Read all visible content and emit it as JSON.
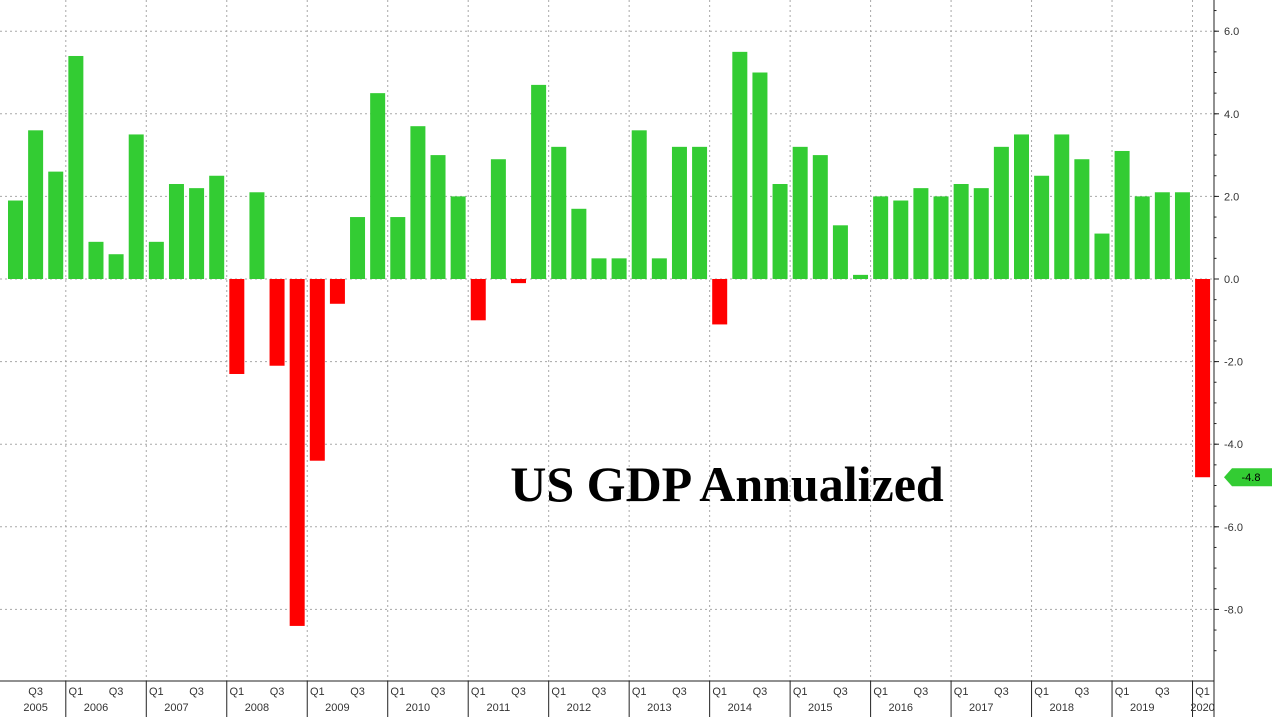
{
  "chart_data": {
    "type": "bar",
    "title": "US GDP Annualized",
    "xlabel": "",
    "ylabel": "",
    "ylim": [
      -9.2,
      6.8
    ],
    "grid": true,
    "yticks": [
      6.0,
      4.0,
      2.0,
      0.0,
      -2.0,
      -4.0,
      -6.0,
      -8.0
    ],
    "ytick_labels": [
      "6.0",
      "4.0",
      "2.0",
      "0.0",
      "-2.0",
      "-4.0",
      "-6.0",
      "-8.0"
    ],
    "first_quarter": {
      "year": 2005,
      "quarter": 2
    },
    "values": [
      1.9,
      3.6,
      2.6,
      5.4,
      0.9,
      0.6,
      3.5,
      0.9,
      2.3,
      2.2,
      2.5,
      -2.3,
      2.1,
      -2.1,
      -8.4,
      -4.4,
      -0.6,
      1.5,
      4.5,
      1.5,
      3.7,
      3.0,
      2.0,
      -1.0,
      2.9,
      -0.1,
      4.7,
      3.2,
      1.7,
      0.5,
      0.5,
      3.6,
      0.5,
      3.2,
      3.2,
      -1.1,
      5.5,
      5.0,
      2.3,
      3.2,
      3.0,
      1.3,
      0.1,
      2.0,
      1.9,
      2.2,
      2.0,
      2.3,
      2.2,
      3.2,
      3.5,
      2.5,
      3.5,
      2.9,
      1.1,
      3.1,
      2.0,
      2.1,
      2.1,
      -4.8
    ],
    "x_quarter_labels": [
      {
        "label": "Q3",
        "index": 1
      },
      {
        "label": "Q1",
        "index": 3
      },
      {
        "label": "Q3",
        "index": 5
      },
      {
        "label": "Q1",
        "index": 7
      },
      {
        "label": "Q3",
        "index": 9
      },
      {
        "label": "Q1",
        "index": 11
      },
      {
        "label": "Q3",
        "index": 13
      },
      {
        "label": "Q1",
        "index": 15
      },
      {
        "label": "Q3",
        "index": 17
      },
      {
        "label": "Q1",
        "index": 19
      },
      {
        "label": "Q3",
        "index": 21
      },
      {
        "label": "Q1",
        "index": 23
      },
      {
        "label": "Q3",
        "index": 25
      },
      {
        "label": "Q1",
        "index": 27
      },
      {
        "label": "Q3",
        "index": 29
      },
      {
        "label": "Q1",
        "index": 31
      },
      {
        "label": "Q3",
        "index": 33
      },
      {
        "label": "Q1",
        "index": 35
      },
      {
        "label": "Q3",
        "index": 37
      },
      {
        "label": "Q1",
        "index": 39
      },
      {
        "label": "Q3",
        "index": 41
      },
      {
        "label": "Q1",
        "index": 43
      },
      {
        "label": "Q3",
        "index": 45
      },
      {
        "label": "Q1",
        "index": 47
      },
      {
        "label": "Q3",
        "index": 49
      },
      {
        "label": "Q1",
        "index": 51
      },
      {
        "label": "Q3",
        "index": 53
      },
      {
        "label": "Q1",
        "index": 55
      },
      {
        "label": "Q3",
        "index": 57
      },
      {
        "label": "Q1",
        "index": 59
      }
    ],
    "x_year_labels": [
      {
        "label": "2005",
        "index": 1
      },
      {
        "label": "2006",
        "index": 4
      },
      {
        "label": "2007",
        "index": 8
      },
      {
        "label": "2008",
        "index": 12
      },
      {
        "label": "2009",
        "index": 16
      },
      {
        "label": "2010",
        "index": 20
      },
      {
        "label": "2011",
        "index": 24
      },
      {
        "label": "2012",
        "index": 28
      },
      {
        "label": "2013",
        "index": 32
      },
      {
        "label": "2014",
        "index": 36
      },
      {
        "label": "2015",
        "index": 40
      },
      {
        "label": "2016",
        "index": 44
      },
      {
        "label": "2017",
        "index": 48
      },
      {
        "label": "2018",
        "index": 52
      },
      {
        "label": "2019",
        "index": 56
      },
      {
        "label": "2020",
        "index": 59
      }
    ],
    "last_value_label": "-4.8",
    "colors": {
      "positive": "#33cc33",
      "negative": "#ff0000",
      "grid": "#a8a8a8",
      "axis": "#222222",
      "tick_label": "#333333",
      "badge": "#33cc33"
    }
  }
}
